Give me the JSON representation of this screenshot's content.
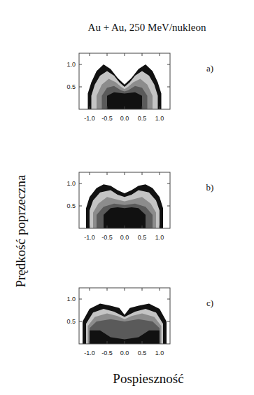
{
  "title": "Au + Au, 250 MeV/nukleon",
  "y_label": "Prędkość poprzeczna",
  "x_label": "Pospieszność",
  "chart_data": [
    {
      "type": "contour",
      "title": "a)",
      "xlim": [
        -1.3,
        1.3
      ],
      "ylim": [
        0,
        1.25
      ],
      "xticks": [
        {
          "value": -1,
          "label": "-1.0"
        },
        -0.5,
        {
          "value": 0,
          "label": "0.0"
        },
        0.5,
        {
          "value": 1,
          "label": "1.0"
        }
      ],
      "yticks": [
        0.5,
        {
          "value": 1,
          "label": "1.0"
        }
      ],
      "levels": [
        {
          "color": "#111111",
          "x": [
            -1.05,
            -1.05,
            -0.95,
            -0.8,
            -0.6,
            -0.4,
            -0.2,
            0,
            0.2,
            0.4,
            0.6,
            0.8,
            0.95,
            1.05,
            1.05
          ],
          "y": [
            0,
            0.35,
            0.6,
            0.85,
            1.0,
            0.9,
            0.7,
            0.55,
            0.7,
            0.9,
            1.0,
            0.85,
            0.6,
            0.35,
            0
          ]
        },
        {
          "color": "#c4c4c4",
          "x": [
            -0.95,
            -0.95,
            -0.85,
            -0.7,
            -0.5,
            -0.3,
            -0.15,
            0,
            0.15,
            0.3,
            0.5,
            0.7,
            0.85,
            0.95,
            0.95
          ],
          "y": [
            0,
            0.3,
            0.55,
            0.75,
            0.85,
            0.75,
            0.6,
            0.5,
            0.6,
            0.75,
            0.85,
            0.75,
            0.55,
            0.3,
            0
          ]
        },
        {
          "color": "#8c8c8c",
          "x": [
            -0.8,
            -0.8,
            -0.65,
            -0.45,
            -0.25,
            -0.1,
            0,
            0.1,
            0.25,
            0.45,
            0.65,
            0.8,
            0.8
          ],
          "y": [
            0,
            0.3,
            0.55,
            0.68,
            0.6,
            0.5,
            0.45,
            0.5,
            0.6,
            0.68,
            0.55,
            0.3,
            0
          ]
        },
        {
          "color": "#5a5a5a",
          "x": [
            -0.65,
            -0.65,
            -0.5,
            -0.3,
            -0.1,
            0,
            0.1,
            0.3,
            0.5,
            0.65,
            0.65
          ],
          "y": [
            0,
            0.3,
            0.48,
            0.52,
            0.42,
            0.4,
            0.42,
            0.52,
            0.48,
            0.3,
            0
          ]
        },
        {
          "color": "#111111",
          "x": [
            -0.5,
            -0.5,
            -0.3,
            0,
            0.3,
            0.5,
            0.5
          ],
          "y": [
            0,
            0.3,
            0.38,
            0.35,
            0.38,
            0.3,
            0
          ]
        }
      ]
    },
    {
      "type": "contour",
      "title": "b)",
      "xlim": [
        -1.3,
        1.3
      ],
      "ylim": [
        0,
        1.25
      ],
      "xticks": [
        {
          "value": -1,
          "label": "-1.0"
        },
        -0.5,
        {
          "value": 0,
          "label": "0.0"
        },
        0.5,
        {
          "value": 1,
          "label": "1.0"
        }
      ],
      "yticks": [
        0.5,
        {
          "value": 1,
          "label": "1.0"
        }
      ],
      "levels": [
        {
          "color": "#111111",
          "x": [
            -1.1,
            -1.1,
            -1.0,
            -0.8,
            -0.6,
            -0.4,
            -0.2,
            0,
            0.2,
            0.4,
            0.6,
            0.8,
            1.0,
            1.1,
            1.1
          ],
          "y": [
            0,
            0.45,
            0.7,
            0.9,
            0.98,
            0.95,
            0.85,
            0.78,
            0.85,
            0.95,
            0.98,
            0.9,
            0.7,
            0.45,
            0
          ]
        },
        {
          "color": "#c4c4c4",
          "x": [
            -1.0,
            -1.0,
            -0.9,
            -0.7,
            -0.4,
            -0.2,
            0,
            0.2,
            0.4,
            0.7,
            0.9,
            1.0,
            1.0
          ],
          "y": [
            0,
            0.4,
            0.62,
            0.8,
            0.85,
            0.75,
            0.7,
            0.75,
            0.85,
            0.8,
            0.62,
            0.4,
            0
          ]
        },
        {
          "color": "#8c8c8c",
          "x": [
            -0.9,
            -0.9,
            -0.75,
            -0.5,
            -0.25,
            0,
            0.25,
            0.5,
            0.75,
            0.9,
            0.9
          ],
          "y": [
            0,
            0.35,
            0.55,
            0.7,
            0.65,
            0.6,
            0.65,
            0.7,
            0.55,
            0.35,
            0
          ]
        },
        {
          "color": "#5a5a5a",
          "x": [
            -0.8,
            -0.8,
            -0.6,
            -0.3,
            0,
            0.3,
            0.6,
            0.8,
            0.8
          ],
          "y": [
            0,
            0.3,
            0.48,
            0.55,
            0.52,
            0.55,
            0.48,
            0.3,
            0
          ]
        },
        {
          "color": "#111111",
          "x": [
            -0.6,
            -0.6,
            -0.4,
            -0.2,
            0,
            0.2,
            0.4,
            0.6,
            0.6
          ],
          "y": [
            0,
            0.3,
            0.45,
            0.47,
            0.45,
            0.47,
            0.45,
            0.3,
            0
          ]
        }
      ]
    },
    {
      "type": "contour",
      "title": "c)",
      "xlim": [
        -1.3,
        1.3
      ],
      "ylim": [
        0,
        1.25
      ],
      "xticks": [
        {
          "value": -1,
          "label": "-1.0"
        },
        -0.5,
        {
          "value": 0,
          "label": "0.0"
        },
        0.5,
        {
          "value": 1,
          "label": "1.0"
        }
      ],
      "yticks": [
        0.5,
        {
          "value": 1,
          "label": "1.0"
        }
      ],
      "levels": [
        {
          "color": "#111111",
          "x": [
            -1.2,
            -1.2,
            -1.0,
            -0.7,
            -0.4,
            -0.15,
            0,
            0.15,
            0.4,
            0.7,
            1.0,
            1.2,
            1.2
          ],
          "y": [
            0,
            0.5,
            0.78,
            0.9,
            0.85,
            0.8,
            0.65,
            0.8,
            0.85,
            0.9,
            0.78,
            0.5,
            0
          ]
        },
        {
          "color": "#c4c4c4",
          "x": [
            -1.1,
            -1.1,
            -0.9,
            -0.6,
            -0.3,
            0,
            0.3,
            0.6,
            0.9,
            1.1,
            1.1
          ],
          "y": [
            0,
            0.45,
            0.7,
            0.78,
            0.72,
            0.6,
            0.72,
            0.78,
            0.7,
            0.45,
            0
          ]
        },
        {
          "color": "#8c8c8c",
          "x": [
            -1.05,
            -1.05,
            -0.85,
            -0.5,
            -0.2,
            0,
            0.2,
            0.5,
            0.85,
            1.05,
            1.05
          ],
          "y": [
            0,
            0.4,
            0.6,
            0.68,
            0.62,
            0.55,
            0.62,
            0.68,
            0.6,
            0.4,
            0
          ]
        },
        {
          "color": "#5a5a5a",
          "x": [
            -1.0,
            -1.0,
            -0.8,
            -0.4,
            0,
            0.4,
            0.8,
            1.0,
            1.0
          ],
          "y": [
            0,
            0.35,
            0.5,
            0.55,
            0.5,
            0.55,
            0.5,
            0.35,
            0
          ]
        },
        {
          "color": "#111111",
          "x": [
            -1.0,
            -1.0,
            -0.7,
            -0.4,
            0,
            0.4,
            0.7,
            1.0,
            1.0
          ],
          "y": [
            0,
            0.3,
            0.3,
            0.15,
            0.1,
            0.15,
            0.3,
            0.3,
            0
          ]
        }
      ]
    }
  ]
}
